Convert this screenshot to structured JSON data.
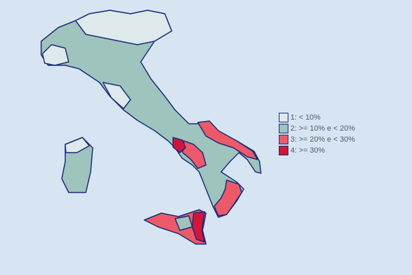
{
  "map": {
    "legend": [
      {
        "label": "1: <  10%",
        "color": "#dde9ea"
      },
      {
        "label": "2: >= 10% e < 20%",
        "color": "#9fc3bd"
      },
      {
        "label": "3: >= 20% e < 30%",
        "color": "#ec5a6a"
      },
      {
        "label": "4: >= 30%",
        "color": "#d4153a"
      }
    ],
    "border_color": "#1a2a7a",
    "background": "#d6e5f1"
  }
}
